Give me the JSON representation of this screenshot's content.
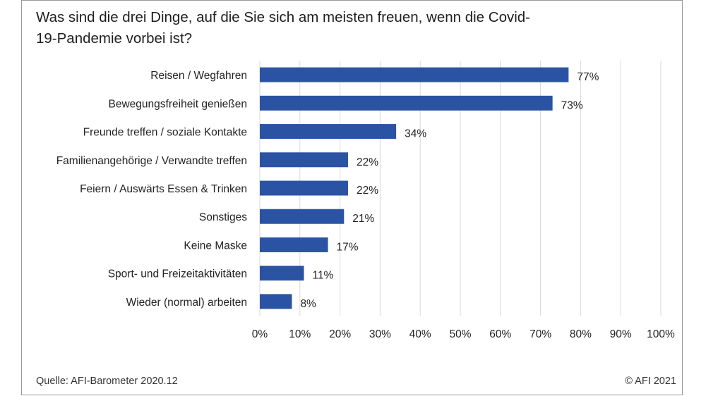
{
  "title_lines": [
    "Was sind die drei Dinge, auf die Sie sich am meisten freuen, wenn die Covid-",
    "19-Pandemie vorbei ist?"
  ],
  "source": "Quelle: AFI-Barometer 2020.12",
  "copyright": "© AFI 2021",
  "bar_color": "#2b53a3",
  "grid_color": "#d9d9d9",
  "chart_data": {
    "type": "bar",
    "orientation": "horizontal",
    "categories": [
      "Reisen / Wegfahren",
      "Bewegungsfreiheit genießen",
      "Freunde treffen / soziale Kontakte",
      "Familienangehörige / Verwandte treffen",
      "Feiern / Auswärts Essen & Trinken",
      "Sonstiges",
      "Keine Maske",
      "Sport- und Freizeitaktivitäten",
      "Wieder (normal) arbeiten"
    ],
    "values": [
      77,
      73,
      34,
      22,
      22,
      21,
      17,
      11,
      8
    ],
    "value_labels": [
      "77%",
      "73%",
      "34%",
      "22%",
      "22%",
      "21%",
      "17%",
      "11%",
      "8%"
    ],
    "xlim": [
      0,
      100
    ],
    "x_ticks": [
      0,
      10,
      20,
      30,
      40,
      50,
      60,
      70,
      80,
      90,
      100
    ],
    "x_tick_labels": [
      "0%",
      "10%",
      "20%",
      "30%",
      "40%",
      "50%",
      "60%",
      "70%",
      "80%",
      "90%",
      "100%"
    ],
    "grid": true,
    "legend": "none"
  }
}
